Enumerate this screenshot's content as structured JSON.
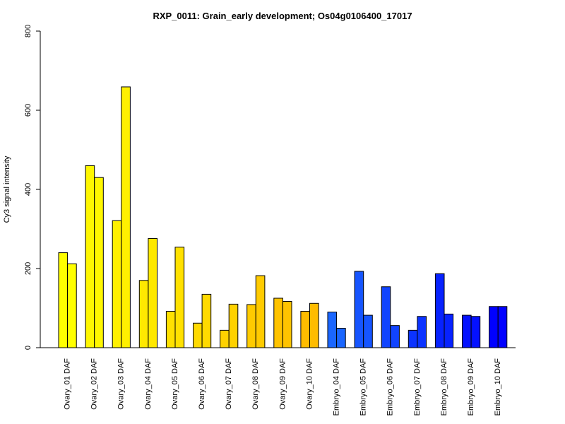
{
  "chart_data": {
    "type": "bar",
    "title": "RXP_0011: Grain_early development; Os04g0106400_17017",
    "xlabel": "",
    "ylabel": "Cy3 signal intensity",
    "ylim": [
      0,
      800
    ],
    "yticks": [
      0,
      200,
      400,
      600,
      800
    ],
    "grid": false,
    "categories": [
      "Ovary_01 DAF",
      "Ovary_02 DAF",
      "Ovary_03 DAF",
      "Ovary_04 DAF",
      "Ovary_05 DAF",
      "Ovary_06 DAF",
      "Ovary_07 DAF",
      "Ovary_08 DAF",
      "Ovary_09 DAF",
      "Ovary_10 DAF",
      "Embryo_04 DAF",
      "Embryo_05 DAF",
      "Embryo_06 DAF",
      "Embryo_07 DAF",
      "Embryo_08 DAF",
      "Embryo_09 DAF",
      "Embryo_10 DAF"
    ],
    "colors": [
      "#FFFF00",
      "#FFF700",
      "#FFF000",
      "#FFE800",
      "#FFE100",
      "#FFDA00",
      "#FFD200",
      "#FFCB00",
      "#FFC300",
      "#FFBC00",
      "#1A66FF",
      "#1655FF",
      "#1144FF",
      "#0B33FF",
      "#0722FF",
      "#0411FF",
      "#0000FF"
    ],
    "series": [
      {
        "values": [
          240,
          460,
          321,
          170,
          92,
          62,
          44,
          109,
          125,
          92,
          90,
          193,
          154,
          44,
          187,
          82,
          104
        ]
      },
      {
        "values": [
          212,
          430,
          659,
          276,
          254,
          135,
          110,
          182,
          117,
          112,
          49,
          82,
          56,
          79,
          85,
          79,
          104
        ]
      }
    ]
  }
}
